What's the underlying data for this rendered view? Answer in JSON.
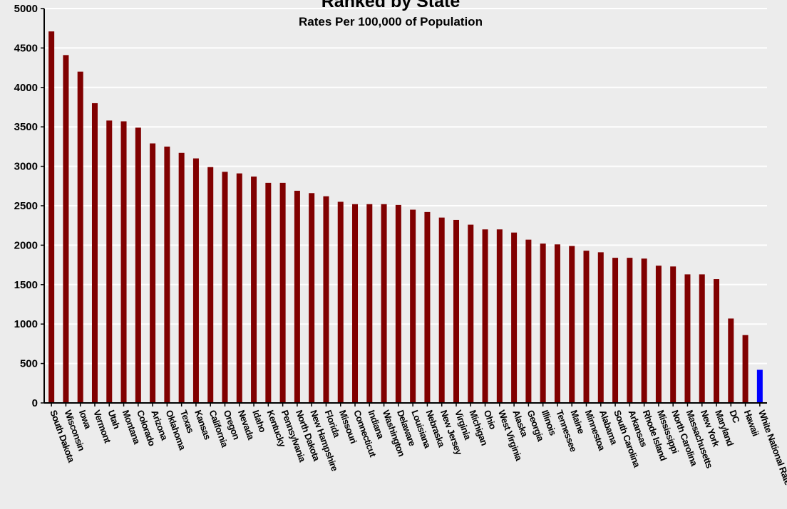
{
  "chart_data": {
    "type": "bar",
    "title": "Ranked by State",
    "subtitle": "Rates Per 100,000 of Population",
    "xlabel": "",
    "ylabel": "",
    "ylim": [
      0,
      5000
    ],
    "yticks": [
      0,
      500,
      1000,
      1500,
      2000,
      2500,
      3000,
      3500,
      4000,
      4500,
      5000
    ],
    "grid": true,
    "legend": "none",
    "colors": {
      "bar": "#800000",
      "highlight": "#0000ff",
      "grid": "#ffffff",
      "axis": "#000000",
      "background": "#ececec"
    },
    "highlight_category": "White National Rate",
    "categories": [
      "South Dakota",
      "Wisconsin",
      "Iowa",
      "Vermont",
      "Utah",
      "Montana",
      "Colorado",
      "Arizona",
      "Oklahoma",
      "Texas",
      "Kansas",
      "California",
      "Oregon",
      "Nevada",
      "Idaho",
      "Kentucky",
      "Pennsylvania",
      "North Dakota",
      "New Hampshire",
      "Florida",
      "Missouri",
      "Connecticut",
      "Indiana",
      "Washington",
      "Delaware",
      "Louisiana",
      "Nebraska",
      "New Jersey",
      "Virginia",
      "Michigan",
      "Ohio",
      "West Virginia",
      "Alaska",
      "Georgia",
      "Illinois",
      "Tennessee",
      "Maine",
      "Minnestoa",
      "Alabama",
      "South Carolina",
      "Arkansas",
      "Rhode Island",
      "Mississippi",
      "North Carolina",
      "Massachusetts",
      "New York",
      "Maryland",
      "DC",
      "Hawaii",
      "White National Rate"
    ],
    "values": [
      4710,
      4410,
      4200,
      3800,
      3580,
      3570,
      3490,
      3290,
      3250,
      3170,
      3100,
      2990,
      2930,
      2910,
      2870,
      2790,
      2790,
      2690,
      2660,
      2620,
      2550,
      2520,
      2520,
      2520,
      2510,
      2450,
      2420,
      2350,
      2320,
      2260,
      2200,
      2200,
      2160,
      2070,
      2020,
      2010,
      1990,
      1930,
      1910,
      1840,
      1840,
      1830,
      1740,
      1730,
      1630,
      1630,
      1570,
      1070,
      860,
      420
    ]
  }
}
